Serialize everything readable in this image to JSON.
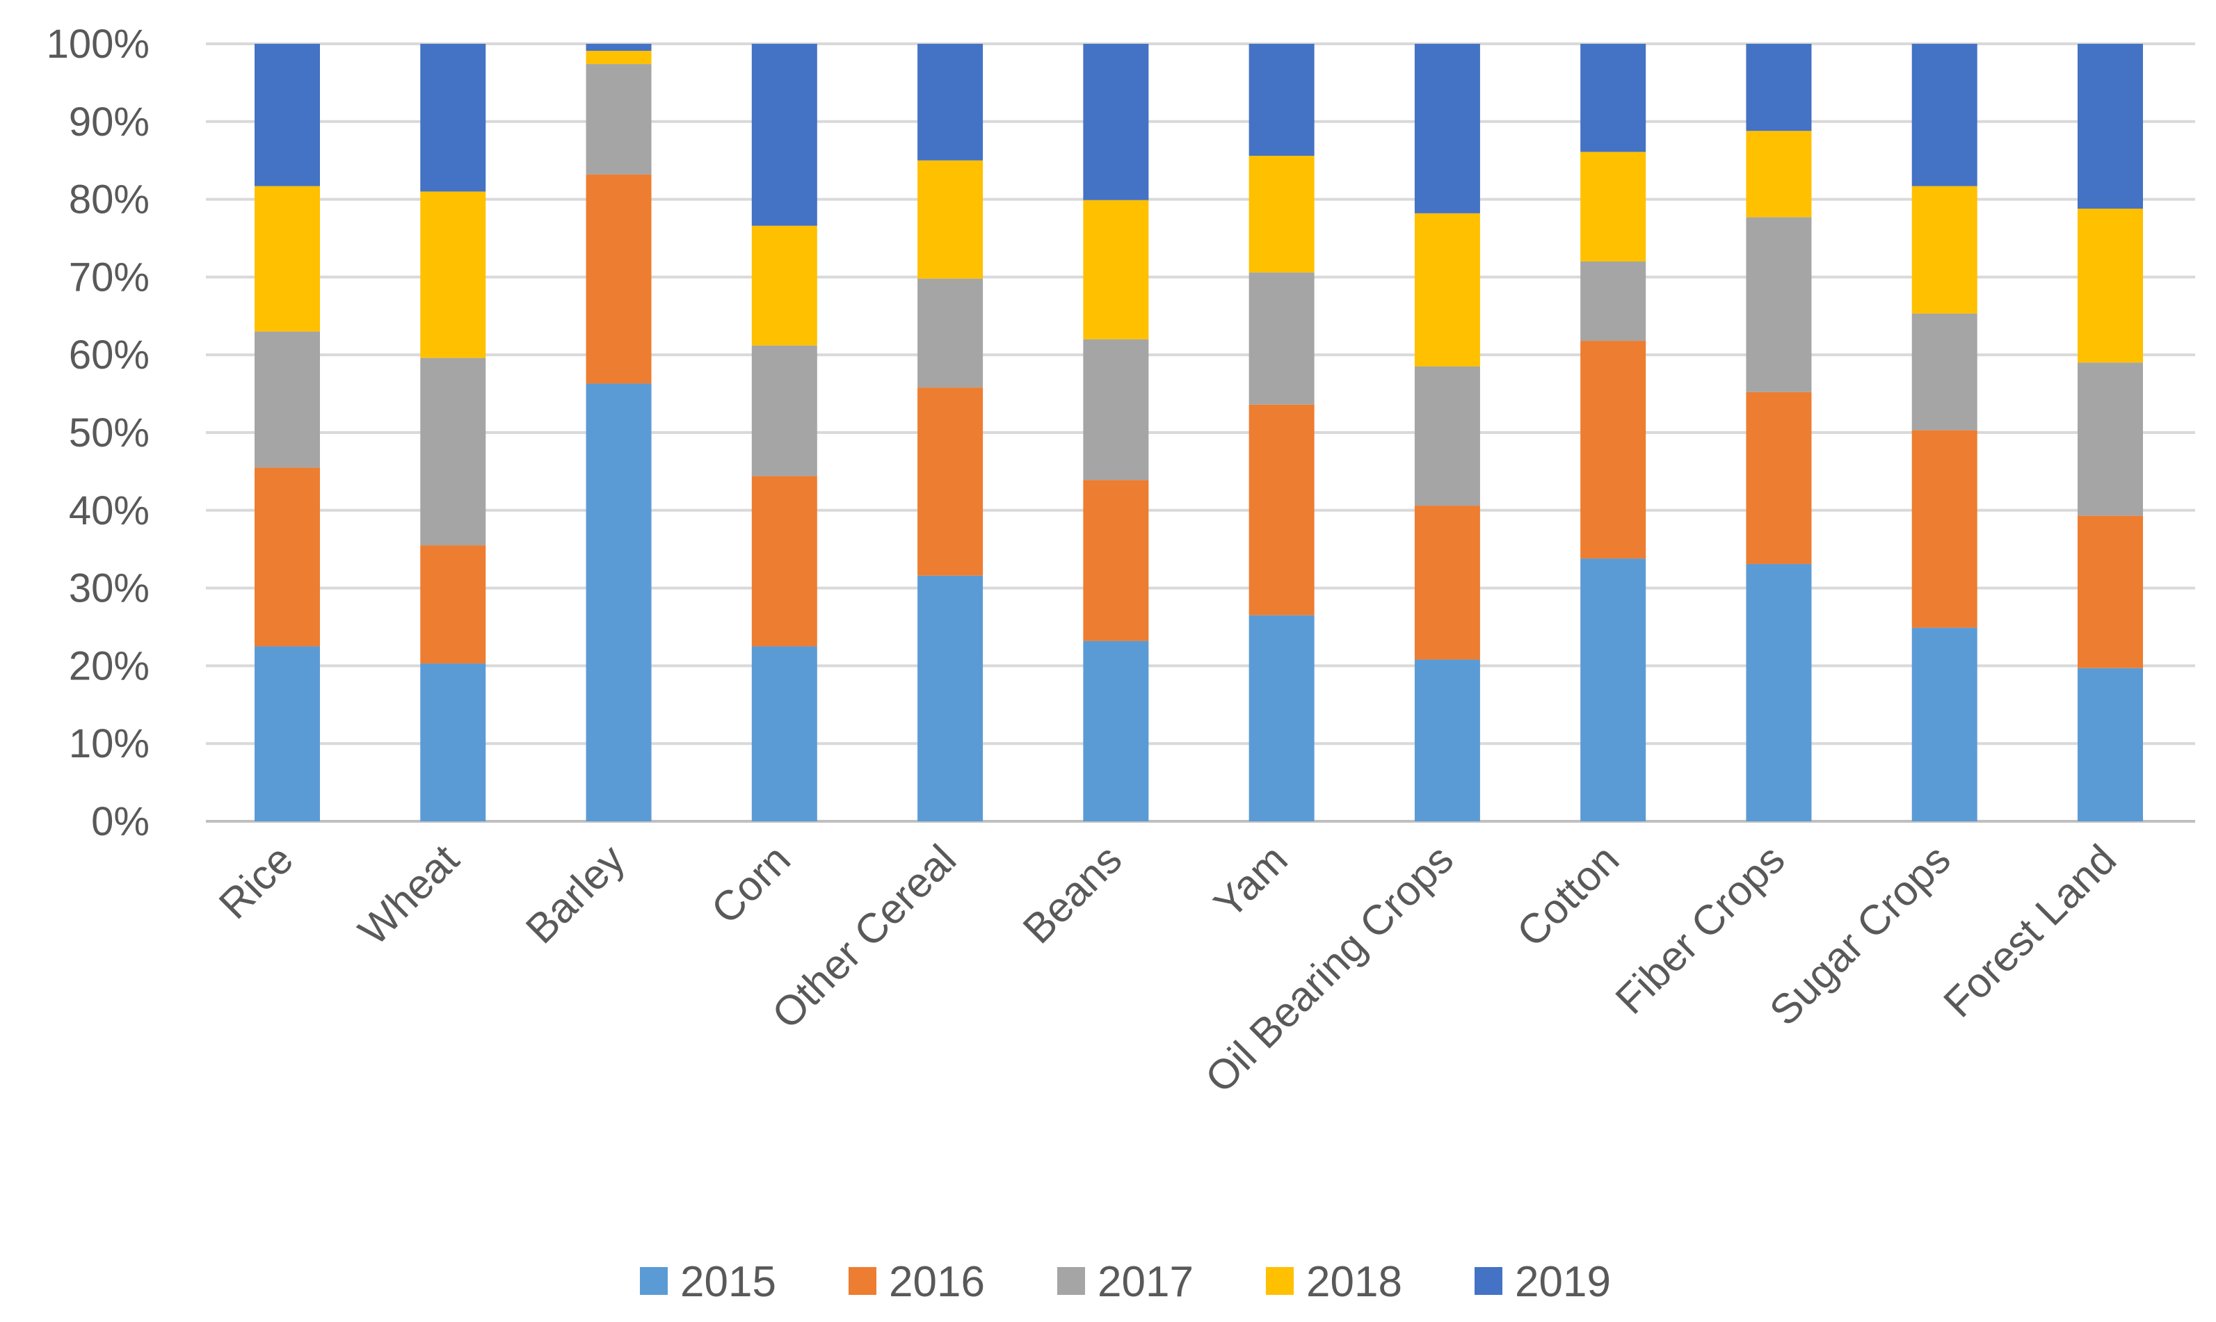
{
  "chart_data": {
    "type": "bar",
    "stacked": true,
    "percent_stacked": true,
    "title": "",
    "xlabel": "",
    "ylabel": "",
    "ylim": [
      0,
      100
    ],
    "yticks": [
      "0%",
      "10%",
      "20%",
      "30%",
      "40%",
      "50%",
      "60%",
      "70%",
      "80%",
      "90%",
      "100%"
    ],
    "grid": true,
    "legend_position": "bottom",
    "categories": [
      "Rice",
      "Wheat",
      "Barley",
      "Corn",
      "Other Cereal",
      "Beans",
      "Yam",
      "Oil Bearing Crops",
      "Cotton",
      "Fiber Crops",
      "Sugar Crops",
      "Forest Land"
    ],
    "series": [
      {
        "name": "2015",
        "color": "#5B9BD5",
        "values": [
          22.5,
          20.3,
          56.3,
          22.5,
          31.6,
          23.2,
          26.5,
          20.8,
          33.8,
          33.1,
          24.9,
          19.7
        ]
      },
      {
        "name": "2016",
        "color": "#ED7D31",
        "values": [
          23.0,
          15.2,
          26.9,
          21.9,
          24.2,
          20.7,
          27.1,
          19.8,
          28.0,
          22.1,
          25.4,
          19.6
        ]
      },
      {
        "name": "2017",
        "color": "#A5A5A5",
        "values": [
          17.5,
          24.1,
          14.2,
          16.8,
          14.0,
          18.1,
          17.0,
          17.9,
          10.2,
          22.5,
          15.0,
          19.7
        ]
      },
      {
        "name": "2018",
        "color": "#FFC000",
        "values": [
          18.7,
          21.4,
          1.7,
          15.4,
          15.2,
          17.9,
          15.0,
          19.7,
          14.1,
          11.1,
          16.4,
          19.8
        ]
      },
      {
        "name": "2019",
        "color": "#4472C4",
        "values": [
          18.3,
          19.0,
          0.9,
          23.4,
          15.0,
          20.1,
          14.4,
          21.8,
          13.9,
          11.2,
          18.3,
          21.2
        ]
      }
    ]
  }
}
